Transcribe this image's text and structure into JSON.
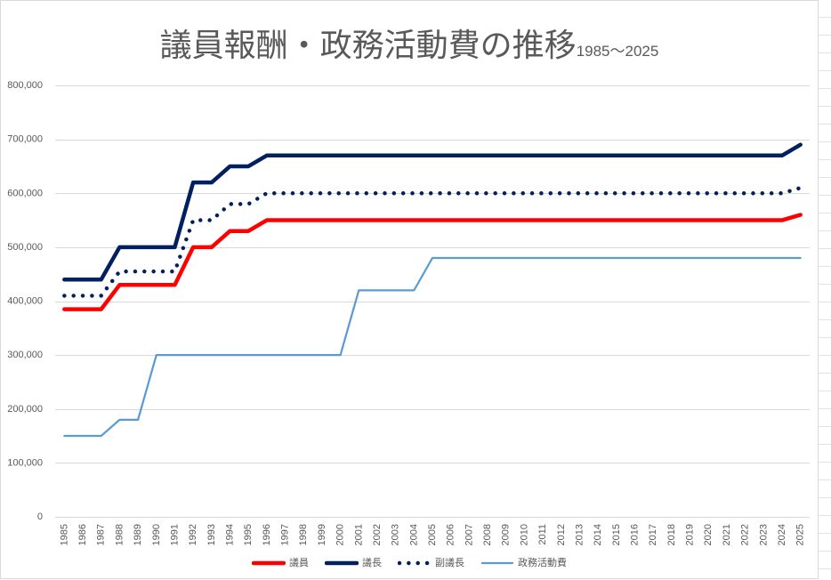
{
  "chart_data": {
    "type": "line",
    "title": "議員報酬・政務活動費の推移",
    "subtitle": "1985～2025",
    "categories": [
      "1985",
      "1986",
      "1987",
      "1988",
      "1989",
      "1990",
      "1991",
      "1992",
      "1993",
      "1994",
      "1995",
      "1996",
      "1997",
      "1998",
      "1999",
      "2000",
      "2001",
      "2002",
      "2003",
      "2004",
      "2005",
      "2006",
      "2007",
      "2008",
      "2009",
      "2010",
      "2011",
      "2012",
      "2013",
      "2014",
      "2015",
      "2016",
      "2017",
      "2018",
      "2019",
      "2020",
      "2021",
      "2022",
      "2023",
      "2024",
      "2025"
    ],
    "series": [
      {
        "name": "議員",
        "color": "#ff0000",
        "values": [
          385000,
          385000,
          385000,
          430000,
          430000,
          430000,
          430000,
          500000,
          500000,
          530000,
          530000,
          550000,
          550000,
          550000,
          550000,
          550000,
          550000,
          550000,
          550000,
          550000,
          550000,
          550000,
          550000,
          550000,
          550000,
          550000,
          550000,
          550000,
          550000,
          550000,
          550000,
          550000,
          550000,
          550000,
          550000,
          550000,
          550000,
          550000,
          550000,
          550000,
          560000
        ]
      },
      {
        "name": "議長",
        "color": "#002060",
        "values": [
          440000,
          440000,
          440000,
          500000,
          500000,
          500000,
          500000,
          620000,
          620000,
          650000,
          650000,
          670000,
          670000,
          670000,
          670000,
          670000,
          670000,
          670000,
          670000,
          670000,
          670000,
          670000,
          670000,
          670000,
          670000,
          670000,
          670000,
          670000,
          670000,
          670000,
          670000,
          670000,
          670000,
          670000,
          670000,
          670000,
          670000,
          670000,
          670000,
          670000,
          690000
        ]
      },
      {
        "name": "副議長",
        "color": "#002060",
        "values": [
          410000,
          410000,
          410000,
          455000,
          455000,
          455000,
          455000,
          550000,
          550000,
          580000,
          580000,
          600000,
          600000,
          600000,
          600000,
          600000,
          600000,
          600000,
          600000,
          600000,
          600000,
          600000,
          600000,
          600000,
          600000,
          600000,
          600000,
          600000,
          600000,
          600000,
          600000,
          600000,
          600000,
          600000,
          600000,
          600000,
          600000,
          600000,
          600000,
          600000,
          610000
        ]
      },
      {
        "name": "政務活動費",
        "color": "#5b9bd5",
        "values": [
          150000,
          150000,
          150000,
          180000,
          180000,
          300000,
          300000,
          300000,
          300000,
          300000,
          300000,
          300000,
          300000,
          300000,
          300000,
          300000,
          420000,
          420000,
          420000,
          420000,
          480000,
          480000,
          480000,
          480000,
          480000,
          480000,
          480000,
          480000,
          480000,
          480000,
          480000,
          480000,
          480000,
          480000,
          480000,
          480000,
          480000,
          480000,
          480000,
          480000,
          480000
        ]
      }
    ],
    "ylim": [
      0,
      800000
    ],
    "yticks": [
      0,
      100000,
      200000,
      300000,
      400000,
      500000,
      600000,
      700000,
      800000
    ],
    "ytick_labels": [
      "0",
      "100,000",
      "200,000",
      "300,000",
      "400,000",
      "500,000",
      "600,000",
      "700,000",
      "800,000"
    ],
    "grid": true,
    "legend": "bottom"
  }
}
